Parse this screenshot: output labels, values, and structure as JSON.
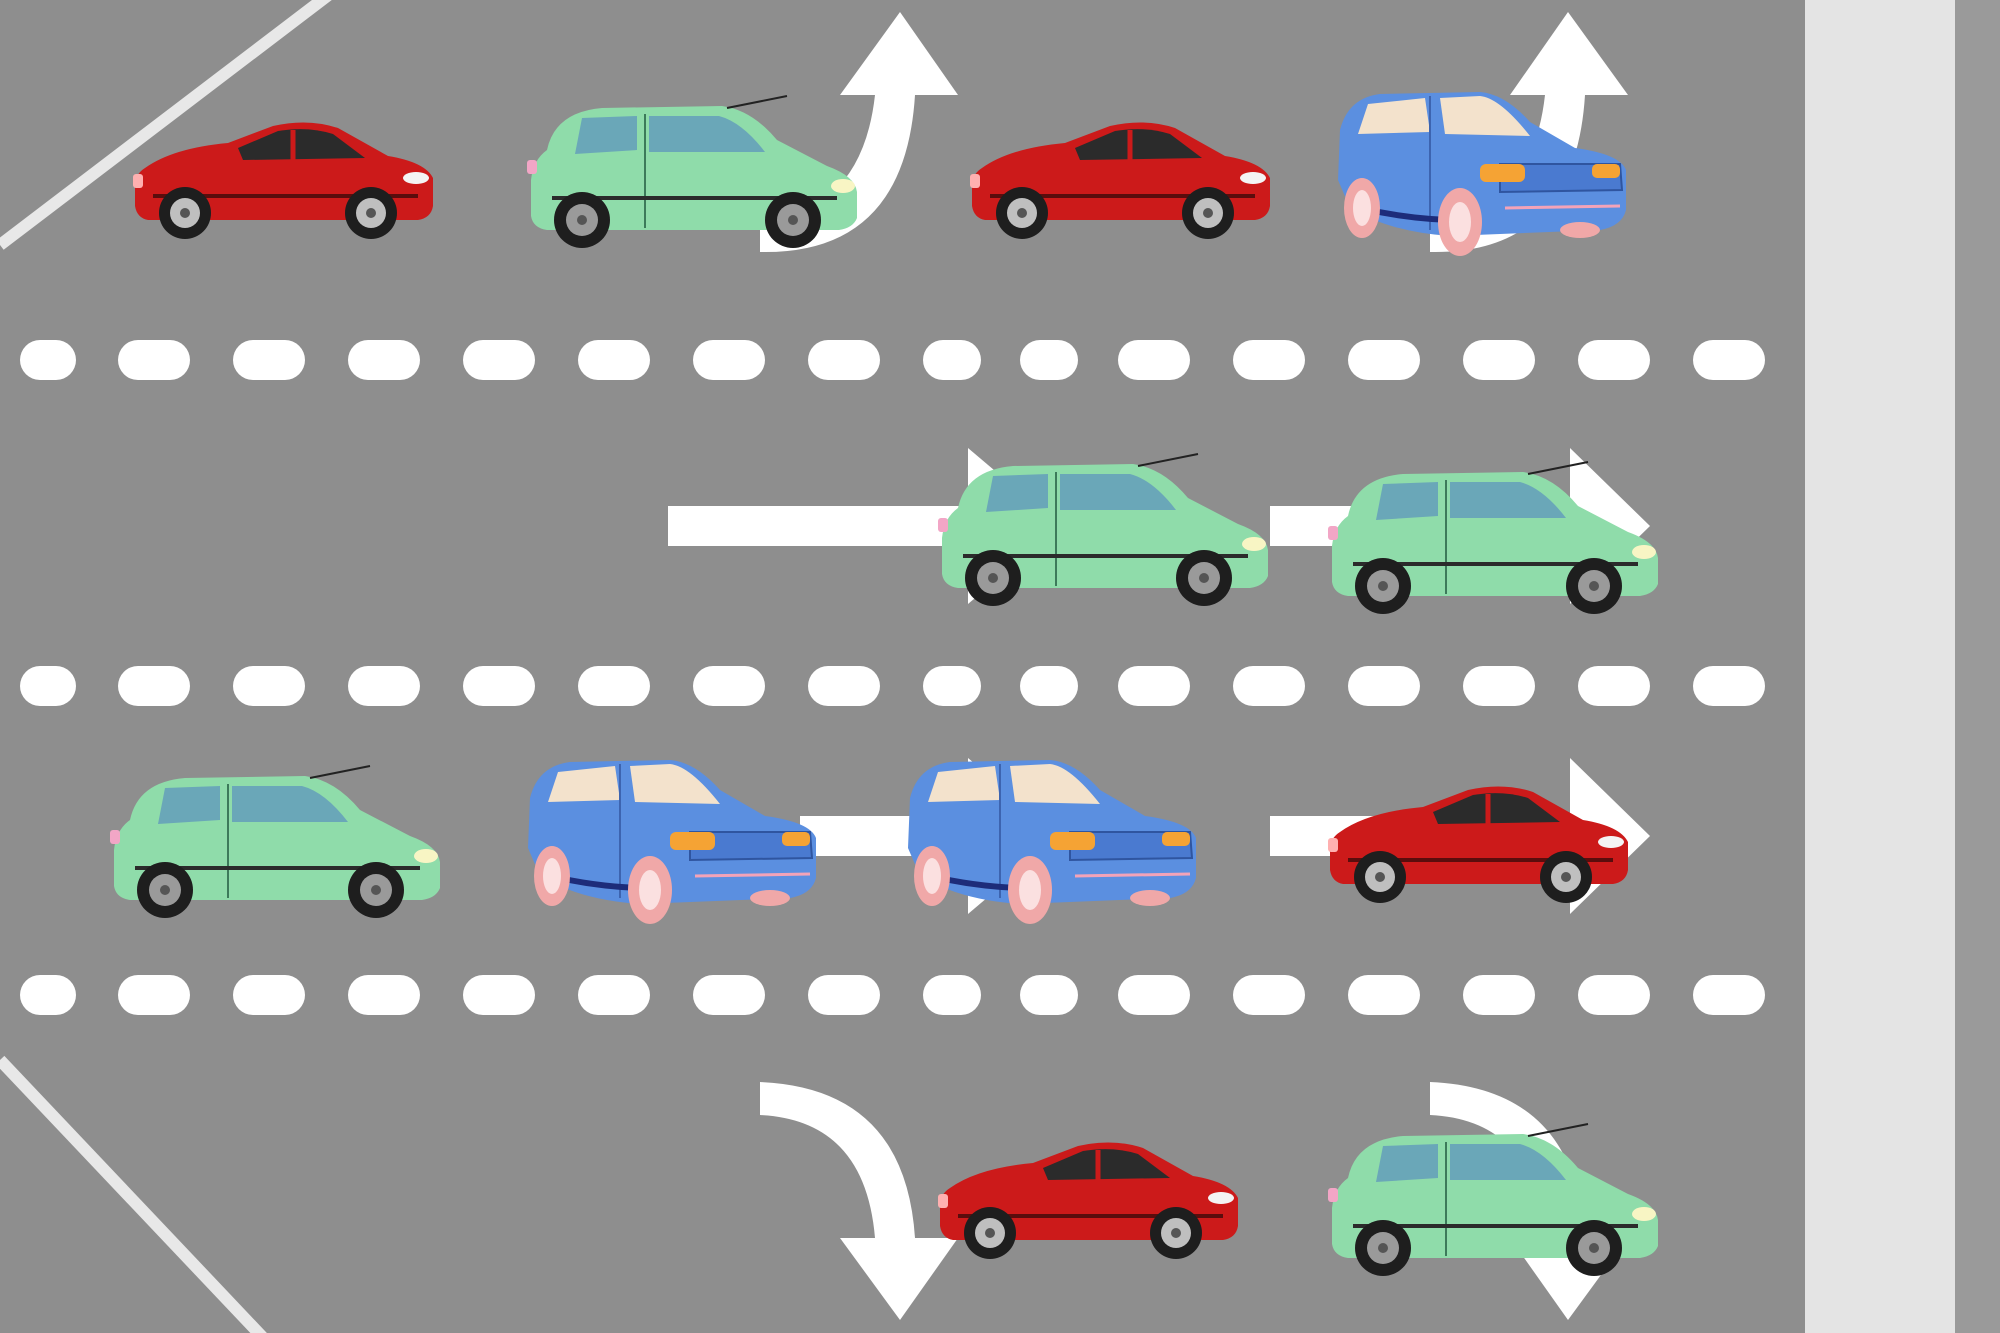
{
  "colors": {
    "road": "#8e8e8e",
    "marking": "#ffffff",
    "sidewalk": "#e4e4e4",
    "curb": "#999999",
    "car_red": "#cc1a1a",
    "car_green": "#8fdcaa",
    "car_blue": "#5b8fe0"
  },
  "arrows": [
    {
      "kind": "turn-left-up"
    },
    {
      "kind": "turn-left-up"
    },
    {
      "kind": "straight"
    },
    {
      "kind": "straight"
    },
    {
      "kind": "turn-right-down"
    },
    {
      "kind": "turn-right-down"
    }
  ],
  "vehicles": [
    {
      "type": "hatchback",
      "color": "red"
    },
    {
      "type": "compact",
      "color": "green"
    },
    {
      "type": "hatchback",
      "color": "red"
    },
    {
      "type": "suv",
      "color": "blue"
    },
    {
      "type": "compact",
      "color": "green"
    },
    {
      "type": "compact",
      "color": "green"
    },
    {
      "type": "compact",
      "color": "green"
    },
    {
      "type": "suv",
      "color": "blue"
    },
    {
      "type": "suv",
      "color": "blue"
    },
    {
      "type": "hatchback",
      "color": "red"
    },
    {
      "type": "hatchback",
      "color": "red"
    },
    {
      "type": "compact",
      "color": "green"
    }
  ]
}
